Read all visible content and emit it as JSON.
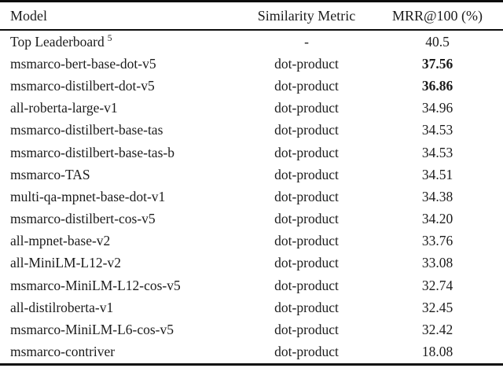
{
  "table": {
    "columns": [
      "Model",
      "Similarity Metric",
      "MRR@100 (%)"
    ],
    "rows": [
      {
        "model": "Top Leaderboard",
        "sup": "5",
        "metric": "-",
        "mrr": "40.5",
        "bold_mrr": false
      },
      {
        "model": "msmarco-bert-base-dot-v5",
        "sup": "",
        "metric": "dot-product",
        "mrr": "37.56",
        "bold_mrr": true
      },
      {
        "model": "msmarco-distilbert-dot-v5",
        "sup": "",
        "metric": "dot-product",
        "mrr": "36.86",
        "bold_mrr": true
      },
      {
        "model": "all-roberta-large-v1",
        "sup": "",
        "metric": "dot-product",
        "mrr": "34.96",
        "bold_mrr": false
      },
      {
        "model": "msmarco-distilbert-base-tas",
        "sup": "",
        "metric": "dot-product",
        "mrr": "34.53",
        "bold_mrr": false
      },
      {
        "model": "msmarco-distilbert-base-tas-b",
        "sup": "",
        "metric": "dot-product",
        "mrr": "34.53",
        "bold_mrr": false
      },
      {
        "model": "msmarco-TAS",
        "sup": "",
        "metric": "dot-product",
        "mrr": "34.51",
        "bold_mrr": false
      },
      {
        "model": "multi-qa-mpnet-base-dot-v1",
        "sup": "",
        "metric": "dot-product",
        "mrr": "34.38",
        "bold_mrr": false
      },
      {
        "model": "msmarco-distilbert-cos-v5",
        "sup": "",
        "metric": "dot-product",
        "mrr": "34.20",
        "bold_mrr": false
      },
      {
        "model": "all-mpnet-base-v2",
        "sup": "",
        "metric": "dot-product",
        "mrr": "33.76",
        "bold_mrr": false
      },
      {
        "model": "all-MiniLM-L12-v2",
        "sup": "",
        "metric": "dot-product",
        "mrr": "33.08",
        "bold_mrr": false
      },
      {
        "model": "msmarco-MiniLM-L12-cos-v5",
        "sup": "",
        "metric": "dot-product",
        "mrr": "32.74",
        "bold_mrr": false
      },
      {
        "model": "all-distilroberta-v1",
        "sup": "",
        "metric": "dot-product",
        "mrr": "32.45",
        "bold_mrr": false
      },
      {
        "model": "msmarco-MiniLM-L6-cos-v5",
        "sup": "",
        "metric": "dot-product",
        "mrr": "32.42",
        "bold_mrr": false
      },
      {
        "model": "msmarco-contriver",
        "sup": "",
        "metric": "dot-product",
        "mrr": "18.08",
        "bold_mrr": false
      }
    ]
  },
  "colors": {
    "text": "#1c1c1c",
    "rule": "#0d0d0d",
    "background": "#ffffff"
  }
}
